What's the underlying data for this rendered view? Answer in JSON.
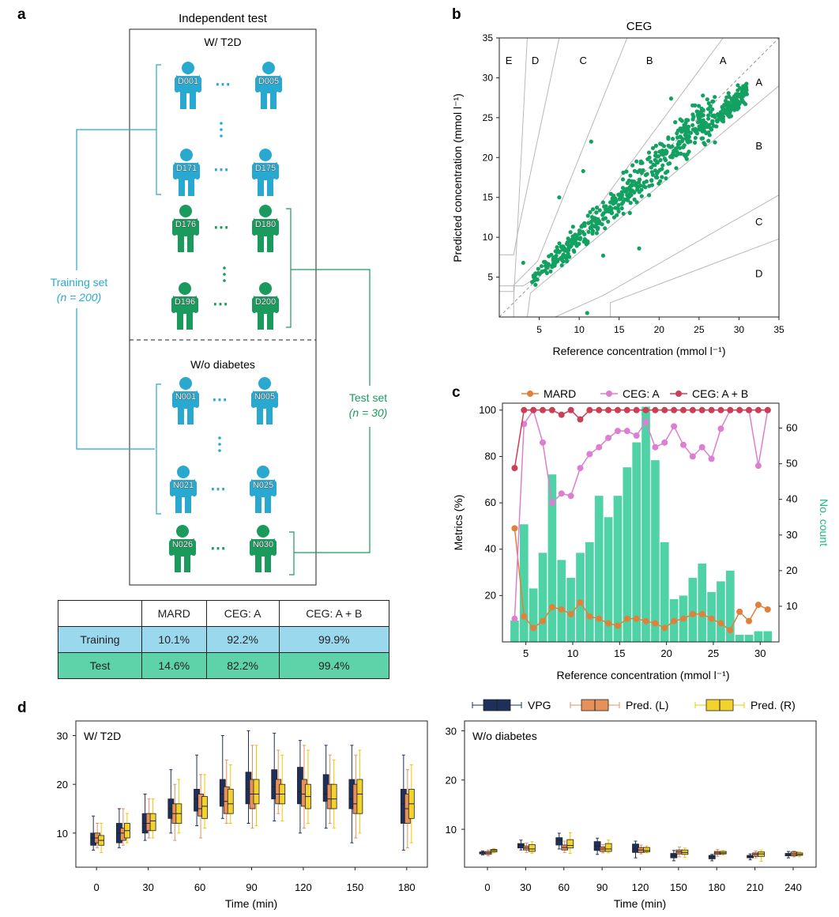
{
  "colors": {
    "blue": "#29a8d0",
    "green": "#1a9a5c",
    "ceg_dot": "#12a160",
    "mard": "#e0803a",
    "ceg_a": "#dd7fd0",
    "ceg_ab": "#c94056",
    "bars": "#4fd3a6",
    "vpg": "#1e2f5c",
    "pred_l": "#e8905a",
    "pred_r": "#f2d22c"
  },
  "panel_a": {
    "label": "a",
    "title": "Independent test",
    "group1": "W/ T2D",
    "group2": "W/o diabetes",
    "training_set": "Training set",
    "training_n": "(n = 200)",
    "test_set": "Test set",
    "test_n": "(n = 30)",
    "ellipsis": "⋯",
    "vdots": "⋮",
    "people": [
      "D001",
      "D005",
      "D171",
      "D175",
      "D176",
      "D180",
      "D196",
      "D200",
      "N001",
      "N005",
      "N021",
      "N025",
      "N026",
      "N030"
    ]
  },
  "table": {
    "headers": [
      "",
      "MARD",
      "CEG: A",
      "CEG: A + B"
    ],
    "rows": [
      [
        "Training",
        "10.1%",
        "92.2%",
        "99.9%"
      ],
      [
        "Test",
        "14.6%",
        "82.2%",
        "99.4%"
      ]
    ]
  },
  "chart_data": [
    {
      "type": "scatter",
      "panel": "b",
      "title": "CEG",
      "xlabel": "Reference concentration (mmol l⁻¹)",
      "ylabel": "Predicted concentration (mmol l⁻¹)",
      "xlim": [
        0,
        35
      ],
      "ylim": [
        0,
        35
      ],
      "xticks": [
        "5",
        "10",
        "15",
        "20",
        "25",
        "30",
        "35"
      ],
      "yticks": [
        "5",
        "10",
        "15",
        "20",
        "25",
        "30",
        "35"
      ],
      "zone_labels": [
        "E",
        "D",
        "C",
        "B",
        "A",
        "A",
        "B",
        "C",
        "D"
      ],
      "n_points": 600
    },
    {
      "type": "bar+line",
      "panel": "c",
      "xlabel": "Reference concentration (mmol l⁻¹)",
      "ylabel_left": "Metrics (%)",
      "ylabel_right": "No. count",
      "xticks": [
        "5",
        "10",
        "15",
        "20",
        "25",
        "30"
      ],
      "yticks_left": [
        "20",
        "40",
        "60",
        "80",
        "100"
      ],
      "yticks_right": [
        "10",
        "20",
        "30",
        "40",
        "50",
        "60"
      ],
      "xlim": [
        2.5,
        32
      ],
      "ylim_left": [
        0,
        103
      ],
      "ylim_right": [
        0,
        67
      ],
      "legend": [
        "MARD",
        "CEG: A",
        "CEG: A + B"
      ],
      "bar_x": [
        3.8,
        4.8,
        5.8,
        6.8,
        7.8,
        8.8,
        9.8,
        10.8,
        11.8,
        12.8,
        13.8,
        14.8,
        15.8,
        16.8,
        17.8,
        18.8,
        19.8,
        20.8,
        21.8,
        22.8,
        23.8,
        24.8,
        25.8,
        26.8,
        27.8,
        28.8,
        29.8,
        30.8
      ],
      "bar_counts": [
        6,
        33,
        15,
        25,
        47,
        23,
        18,
        25,
        28,
        41,
        35,
        41,
        49,
        56,
        66,
        51,
        28,
        12,
        13,
        18,
        22,
        14,
        17,
        20,
        2,
        2,
        3,
        3
      ],
      "series": [
        {
          "name": "MARD",
          "x": [
            3.8,
            4.8,
            5.8,
            6.8,
            7.8,
            8.8,
            9.8,
            10.8,
            11.8,
            12.8,
            13.8,
            14.8,
            15.8,
            16.8,
            17.8,
            18.8,
            19.8,
            20.8,
            21.8,
            22.8,
            23.8,
            24.8,
            25.8,
            26.8,
            27.8,
            28.8,
            29.8,
            30.8
          ],
          "values": [
            49,
            11,
            6,
            9,
            15,
            14,
            12,
            17,
            11,
            10,
            8,
            7,
            10,
            10,
            9,
            8,
            6,
            9,
            10,
            12,
            12,
            10,
            8,
            5,
            13,
            9,
            16,
            14
          ]
        },
        {
          "name": "CEG: A",
          "x": [
            3.8,
            4.8,
            5.8,
            6.8,
            7.8,
            8.8,
            9.8,
            10.8,
            11.8,
            12.8,
            13.8,
            14.8,
            15.8,
            16.8,
            17.8,
            18.8,
            19.8,
            20.8,
            21.8,
            22.8,
            23.8,
            24.8,
            25.8,
            26.8,
            27.8,
            28.8,
            29.8,
            30.8
          ],
          "values": [
            10,
            94,
            100,
            86,
            60,
            64,
            63,
            75,
            81,
            84,
            88,
            91,
            91,
            89,
            95,
            84,
            86,
            93,
            85,
            80,
            84,
            79,
            92,
            100,
            100,
            100,
            76,
            100
          ]
        },
        {
          "name": "CEG: A + B",
          "x": [
            3.8,
            4.8,
            5.8,
            6.8,
            7.8,
            8.8,
            9.8,
            10.8,
            11.8,
            12.8,
            13.8,
            14.8,
            15.8,
            16.8,
            17.8,
            18.8,
            19.8,
            20.8,
            21.8,
            22.8,
            23.8,
            24.8,
            25.8,
            26.8,
            27.8,
            28.8,
            29.8,
            30.8
          ],
          "values": [
            75,
            100,
            100,
            100,
            100,
            98,
            100,
            96,
            100,
            100,
            100,
            100,
            100,
            100,
            100,
            100,
            100,
            100,
            100,
            100,
            100,
            100,
            100,
            100,
            100,
            100,
            100,
            100
          ]
        }
      ]
    },
    {
      "type": "boxplot",
      "panel": "d-left",
      "subtitle": "W/ T2D",
      "xlabel": "Time (min)",
      "xticks": [
        "0",
        "30",
        "60",
        "90",
        "120",
        "150",
        "180"
      ],
      "yticks": [
        "10",
        "20",
        "30"
      ],
      "xlim": [
        -12,
        192
      ],
      "ylim": [
        3,
        33
      ],
      "legend": [
        "VPG",
        "Pred. (L)",
        "Pred. (R)"
      ],
      "times": [
        0,
        15,
        30,
        45,
        60,
        75,
        90,
        105,
        120,
        135,
        150,
        180
      ],
      "series": [
        {
          "name": "VPG",
          "q": [
            [
              6.5,
              7.5,
              9,
              10,
              13.5
            ],
            [
              7,
              8,
              10,
              12,
              15
            ],
            [
              8.5,
              10,
              12,
              14,
              18
            ],
            [
              10,
              13,
              15,
              17,
              23
            ],
            [
              11.5,
              14.5,
              17,
              19,
              26
            ],
            [
              13,
              15.5,
              18,
              21,
              30
            ],
            [
              12,
              16,
              19,
              22.5,
              31
            ],
            [
              12.5,
              17,
              19.5,
              23,
              30.5
            ],
            [
              10,
              16,
              18.5,
              23.5,
              29
            ],
            [
              11,
              16.5,
              18,
              22,
              28
            ],
            [
              8,
              15,
              17,
              21,
              28
            ],
            [
              6.5,
              12,
              16,
              19,
              26
            ]
          ]
        },
        {
          "name": "Pred. (L)",
          "q": [
            [
              7,
              8,
              9,
              10,
              12
            ],
            [
              7.5,
              8.5,
              10,
              11,
              15
            ],
            [
              9,
              10.5,
              12,
              14,
              17
            ],
            [
              8.5,
              12,
              14,
              16,
              20
            ],
            [
              9,
              13.5,
              15,
              18,
              22
            ],
            [
              12,
              14,
              16.5,
              19.5,
              25
            ],
            [
              11,
              15,
              18,
              21,
              28
            ],
            [
              14,
              16,
              18,
              21,
              27
            ],
            [
              11,
              15.5,
              18,
              21,
              28
            ],
            [
              12,
              15,
              17,
              20,
              26
            ],
            [
              9,
              14,
              16,
              20,
              26
            ],
            [
              7,
              12,
              15,
              18,
              23
            ]
          ]
        },
        {
          "name": "Pred. (R)",
          "q": [
            [
              6,
              7.5,
              8.5,
              9.5,
              12
            ],
            [
              8,
              9,
              10.5,
              12,
              14
            ],
            [
              9,
              10.5,
              12.5,
              14,
              17
            ],
            [
              10,
              12,
              14,
              16,
              21
            ],
            [
              11,
              13,
              15.5,
              17.5,
              22
            ],
            [
              12,
              14,
              16,
              19,
              24
            ],
            [
              11.5,
              16,
              18,
              21,
              28
            ],
            [
              12.5,
              16,
              18,
              20,
              26
            ],
            [
              12,
              15,
              17.5,
              20,
              27
            ],
            [
              11,
              15,
              17,
              20,
              25
            ],
            [
              10,
              14,
              18,
              21,
              27
            ],
            [
              8,
              13,
              16,
              19,
              24
            ]
          ]
        }
      ]
    },
    {
      "type": "boxplot",
      "panel": "d-right",
      "subtitle": "W/o diabetes",
      "xlabel": "Time (min)",
      "xticks": [
        "0",
        "30",
        "60",
        "90",
        "120",
        "150",
        "180",
        "210",
        "240"
      ],
      "yticks": [
        "10",
        "20",
        "30"
      ],
      "xlim": [
        -18,
        258
      ],
      "ylim": [
        2.3,
        32
      ],
      "times": [
        0,
        30,
        60,
        90,
        120,
        150,
        180,
        210,
        240
      ],
      "series": [
        {
          "name": "VPG",
          "q": [
            [
              4.8,
              5,
              5.2,
              5.4,
              5.6
            ],
            [
              5.8,
              6.2,
              6.7,
              7.1,
              7.8
            ],
            [
              6,
              6.8,
              7.8,
              8.3,
              9.2
            ],
            [
              4.9,
              5.7,
              6.6,
              7.5,
              8.2
            ],
            [
              4.2,
              5.3,
              6,
              7,
              7.6
            ],
            [
              3.6,
              4.2,
              4.7,
              5.1,
              5.7
            ],
            [
              3.6,
              4,
              4.4,
              4.7,
              4.9
            ],
            [
              3.8,
              4.2,
              4.5,
              4.7,
              5
            ],
            [
              4.2,
              4.6,
              4.9,
              5.1,
              5.5
            ]
          ]
        },
        {
          "name": "Pred. (L)",
          "q": [
            [
              4.6,
              4.9,
              5.2,
              5.5,
              5.8
            ],
            [
              5.3,
              5.8,
              6.2,
              6.6,
              7.2
            ],
            [
              5.3,
              5.8,
              6.3,
              6.8,
              7.6
            ],
            [
              5.2,
              5.5,
              6,
              6.4,
              6.9
            ],
            [
              5,
              5.3,
              5.8,
              6.3,
              6.8
            ],
            [
              4.4,
              5,
              5.4,
              5.8,
              6.4
            ],
            [
              4.5,
              4.9,
              5.2,
              5.5,
              5.9
            ],
            [
              4.2,
              4.5,
              4.9,
              5.2,
              5.6
            ],
            [
              4.4,
              4.6,
              5,
              5.4,
              5.6
            ]
          ]
        },
        {
          "name": "Pred. (R)",
          "q": [
            [
              5.2,
              5.4,
              5.7,
              5.9,
              6.1
            ],
            [
              5.1,
              5.5,
              6,
              6.9,
              7.5
            ],
            [
              5.1,
              6.2,
              6.7,
              7.9,
              9.3
            ],
            [
              5.2,
              5.5,
              6,
              7.1,
              7.8
            ],
            [
              5.2,
              5.4,
              5.7,
              6.3,
              6.6
            ],
            [
              4.3,
              4.9,
              5.3,
              5.8,
              6.2
            ],
            [
              4.8,
              5,
              5.2,
              5.5,
              5.7
            ],
            [
              3.5,
              4.5,
              5,
              5.4,
              5.8
            ],
            [
              4.4,
              4.7,
              4.9,
              5.2,
              5.4
            ]
          ]
        }
      ]
    }
  ]
}
